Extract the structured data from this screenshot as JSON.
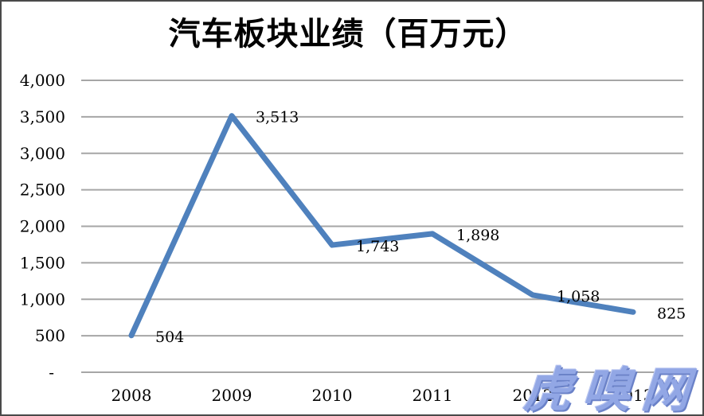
{
  "title": "汽车板块业绩（百万元）",
  "watermark": {
    "text": "虎嗅网",
    "fill": "#92A7E5",
    "shadow": "#6B82C8"
  },
  "colors": {
    "line": "#4F81BD",
    "gridline": "#A6A6A6",
    "text": "#000000",
    "background": "#FFFFFF",
    "frame_border": "#4A4A4A"
  },
  "chart_data": {
    "type": "line",
    "title": "汽车板块业绩（百万元）",
    "categories": [
      "2008",
      "2009",
      "2010",
      "2011",
      "2012",
      "2013"
    ],
    "values": [
      504,
      3513,
      1743,
      1898,
      1058,
      825
    ],
    "point_labels": [
      "504",
      "3,513",
      "1,743",
      "1,898",
      "1,058",
      "825"
    ],
    "xlabel": "",
    "ylabel": "",
    "ylim": [
      0,
      4000
    ],
    "ytick_step": 500,
    "ytick_labels": [
      "-",
      "500",
      "1,000",
      "1,500",
      "2,000",
      "2,500",
      "3,000",
      "3,500",
      "4,000"
    ],
    "grid": "horizontal",
    "legend": false,
    "line_color": "#4F81BD"
  }
}
